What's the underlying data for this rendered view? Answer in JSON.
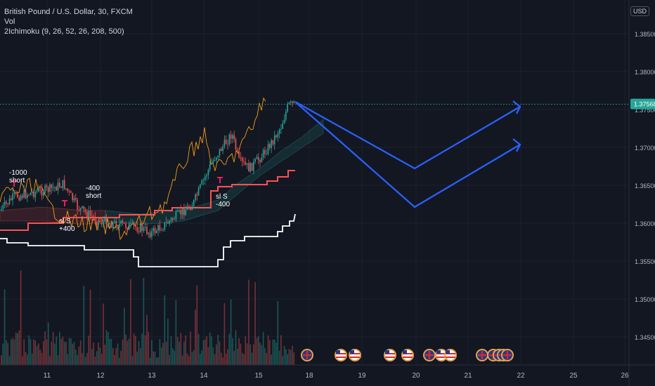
{
  "header": {
    "title": "British Pound / U.S. Dollar, 30, FXCM",
    "volume_label": "Vol",
    "indicator": "2Ichimoku (9, 26, 52, 26, 208, 500)",
    "currency": "USD"
  },
  "price_axis": {
    "ticks": [
      "1.38500",
      "1.38000",
      "1.37500",
      "1.37000",
      "1.36500",
      "1.36000",
      "1.35500",
      "1.35000",
      "1.34500"
    ],
    "current_price": "1.37568"
  },
  "time_axis": {
    "ticks": [
      "11",
      "12",
      "13",
      "14",
      "15",
      "18",
      "19",
      "20",
      "21",
      "22",
      "25",
      "26"
    ]
  },
  "annotations": [
    {
      "text": "-1000\nshort"
    },
    {
      "text": "-400\nshort"
    },
    {
      "text": "sl S\n+400"
    },
    {
      "text": "sl S\n-400"
    }
  ],
  "events": {
    "icons": [
      "flag-gb",
      "flag-us",
      "flag-us",
      "flag-us",
      "flag-us",
      "flag-gb",
      "flag-us",
      "flag-us",
      "flag-gb",
      "flag-gb",
      "flag-gb",
      "flag-gb",
      "flag-gb"
    ]
  },
  "colors": {
    "background": "#131722",
    "up": "#26a69a",
    "down": "#ef5350",
    "projection": "#2962ff",
    "chikou": "#f39c12",
    "base_line": "#ff5252",
    "white_line": "#ffffff"
  },
  "chart_data": {
    "type": "candlestick",
    "symbol": "GBPUSD",
    "timeframe": "30",
    "ylim": [
      1.3405,
      1.39
    ],
    "current_price": 1.37568,
    "projection": [
      {
        "x": "15 (late)",
        "y": 1.3765
      },
      {
        "x": "20",
        "y": 1.3675
      },
      {
        "x": "22",
        "y": 1.3755
      }
    ],
    "projection2": [
      {
        "x": "15 (late)",
        "y": 1.3765
      },
      {
        "x": "20",
        "y": 1.3625
      },
      {
        "x": "22",
        "y": 1.371
      }
    ]
  }
}
